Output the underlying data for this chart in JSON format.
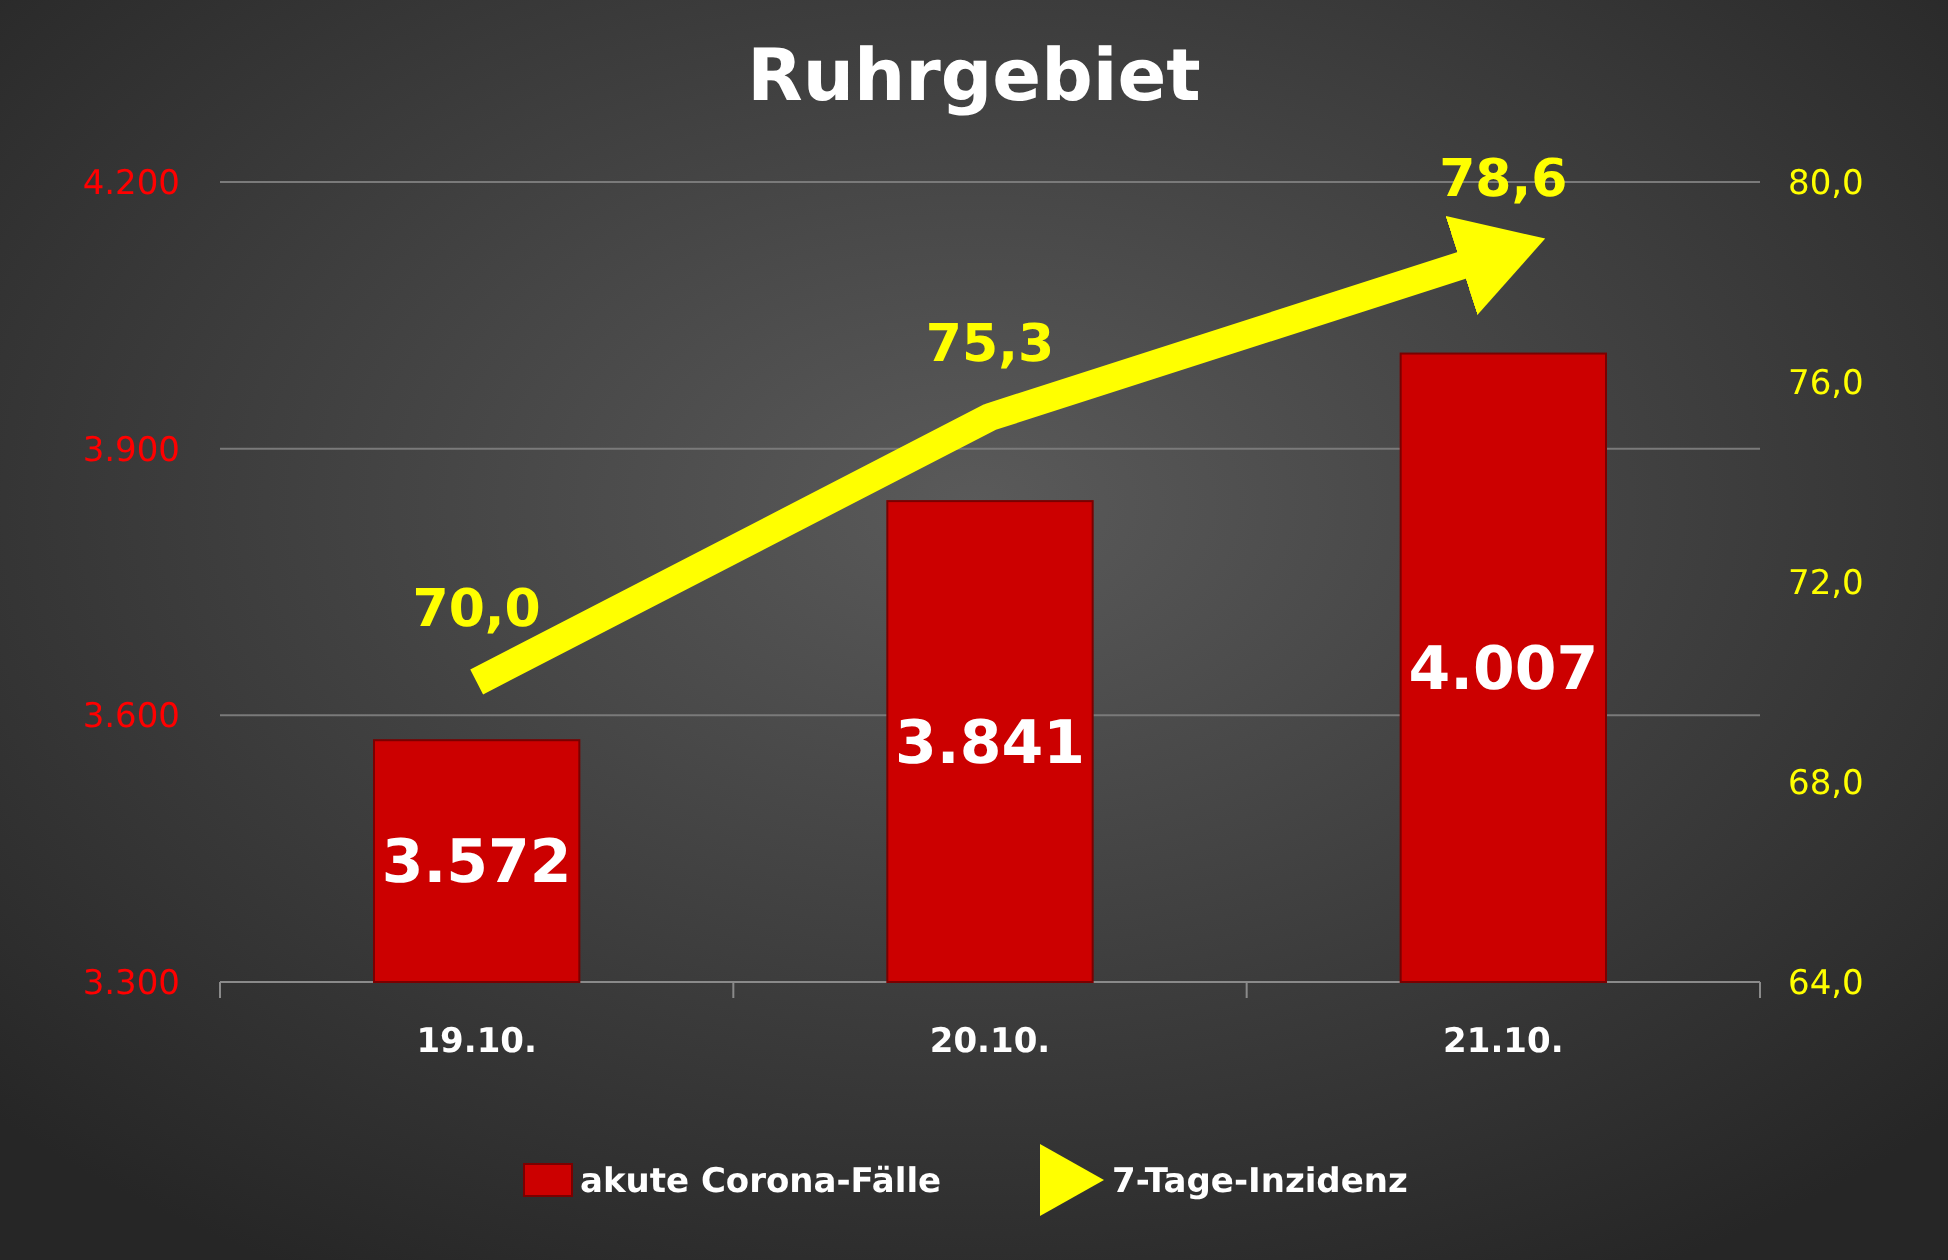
{
  "chart_data": {
    "type": "bar",
    "title": "Ruhrgebiet",
    "categories": [
      "19.10.",
      "20.10.",
      "21.10."
    ],
    "series": [
      {
        "name": "akute Corona-Fälle",
        "color": "#cc0000",
        "values": [
          3572,
          3841,
          4007
        ],
        "value_labels": [
          "3.572",
          "3.841",
          "4.007"
        ]
      },
      {
        "type": "line",
        "name": "7-Tage-Inzidenz",
        "color": "#ffff00",
        "axis": "y2",
        "values": [
          70.0,
          75.3,
          78.6
        ],
        "value_labels": [
          "70,0",
          "75,3",
          "78,6"
        ]
      }
    ],
    "ylim": [
      3300,
      4200
    ],
    "yticks": [
      {
        "value": 3300,
        "label": "3.300"
      },
      {
        "value": 3600,
        "label": "3.600"
      },
      {
        "value": 3900,
        "label": "3.900"
      },
      {
        "value": 4200,
        "label": "4.200"
      }
    ],
    "y2lim": [
      64,
      80
    ],
    "y2ticks": [
      {
        "value": 64,
        "label": "64,0"
      },
      {
        "value": 68,
        "label": "68,0"
      },
      {
        "value": 72,
        "label": "72,0"
      },
      {
        "value": 76,
        "label": "76,0"
      },
      {
        "value": 80,
        "label": "80,0"
      }
    ],
    "grid": "y",
    "legend": "bottom"
  }
}
